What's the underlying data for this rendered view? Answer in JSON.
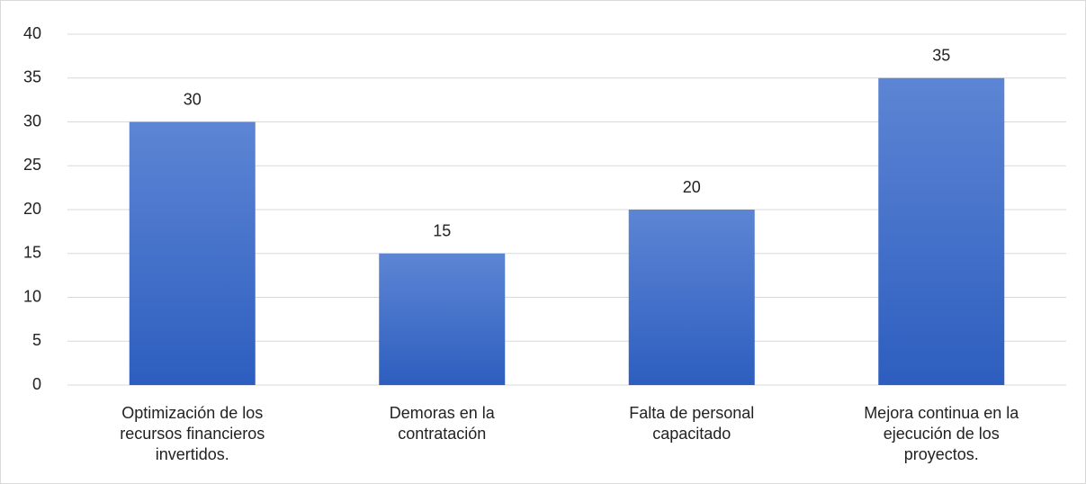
{
  "chart_data": {
    "type": "bar",
    "categories": [
      "Optimización de los recursos financieros invertidos.",
      "Demoras en la contratación",
      "Falta de personal capacitado",
      "Mejora continua en la ejecución de los proyectos."
    ],
    "values": [
      30,
      15,
      20,
      35
    ],
    "color": "#3a66c6",
    "ylim": [
      0,
      40
    ],
    "yticks": [
      0,
      5,
      10,
      15,
      20,
      25,
      30,
      35,
      40
    ],
    "grid": true,
    "data_labels": true
  }
}
